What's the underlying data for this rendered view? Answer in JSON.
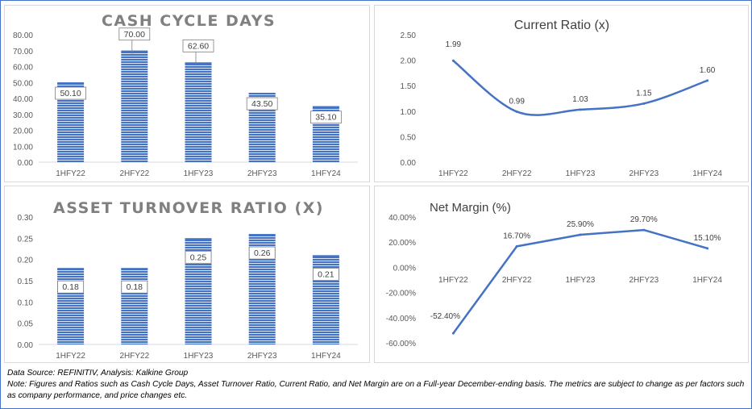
{
  "chart_data": [
    {
      "type": "bar",
      "title": "CASH CYCLE DAYS",
      "categories": [
        "1HFY22",
        "2HFY22",
        "1HFY23",
        "2HFY23",
        "1HFY24"
      ],
      "values": [
        50.1,
        70.0,
        62.6,
        43.5,
        35.1
      ],
      "value_labels": [
        "50.10",
        "70.00",
        "62.60",
        "43.50",
        "35.10"
      ],
      "ylim": [
        0,
        80
      ],
      "y_ticks": [
        "0.00",
        "10.00",
        "20.00",
        "30.00",
        "40.00",
        "50.00",
        "60.00",
        "70.00",
        "80.00"
      ],
      "xlabel": "",
      "ylabel": "",
      "grid": false
    },
    {
      "type": "line",
      "title": "Current Ratio (x)",
      "categories": [
        "1HFY22",
        "2HFY22",
        "1HFY23",
        "2HFY23",
        "1HFY24"
      ],
      "values": [
        1.99,
        0.99,
        1.03,
        1.15,
        1.6
      ],
      "value_labels": [
        "1.99",
        "0.99",
        "1.03",
        "1.15",
        "1.60"
      ],
      "ylim": [
        0,
        2.5
      ],
      "y_ticks": [
        "0.00",
        "0.50",
        "1.00",
        "1.50",
        "2.00",
        "2.50"
      ],
      "xlabel": "",
      "ylabel": "",
      "grid": false
    },
    {
      "type": "bar",
      "title": "ASSET TURNOVER RATIO (X)",
      "categories": [
        "1HFY22",
        "2HFY22",
        "1HFY23",
        "2HFY23",
        "1HFY24"
      ],
      "values": [
        0.18,
        0.18,
        0.25,
        0.26,
        0.21
      ],
      "value_labels": [
        "0.18",
        "0.18",
        "0.25",
        "0.26",
        "0.21"
      ],
      "ylim": [
        0,
        0.3
      ],
      "y_ticks": [
        "0.00",
        "0.05",
        "0.10",
        "0.15",
        "0.20",
        "0.25",
        "0.30"
      ],
      "xlabel": "",
      "ylabel": "",
      "grid": false
    },
    {
      "type": "line",
      "title": "Net Margin (%)",
      "categories": [
        "1HFY22",
        "2HFY22",
        "1HFY23",
        "2HFY23",
        "1HFY24"
      ],
      "values": [
        -52.4,
        16.7,
        25.9,
        29.7,
        15.1
      ],
      "value_labels": [
        "-52.40%",
        "16.70%",
        "25.90%",
        "29.70%",
        "15.10%"
      ],
      "ylim": [
        -60,
        40
      ],
      "y_ticks": [
        "-60.00%",
        "-40.00%",
        "-20.00%",
        "0.00%",
        "20.00%",
        "40.00%"
      ],
      "xlabel": "",
      "ylabel": "",
      "grid": false
    }
  ],
  "footer": {
    "source": "Data Source: REFINITIV, Analysis: Kalkine Group",
    "note": "Note: Figures and Ratios such as Cash Cycle Days, Asset Turnover Ratio, Current Ratio, and Net Margin are on a Full-year December-ending basis. The metrics are subject to change as per factors such as company performance, and price changes etc."
  },
  "colors": {
    "series": "#4472c4",
    "bar_stripe_light": "#dae3f3",
    "axis_text": "#595959",
    "title_gray": "#808080",
    "border": "#4472c4"
  }
}
